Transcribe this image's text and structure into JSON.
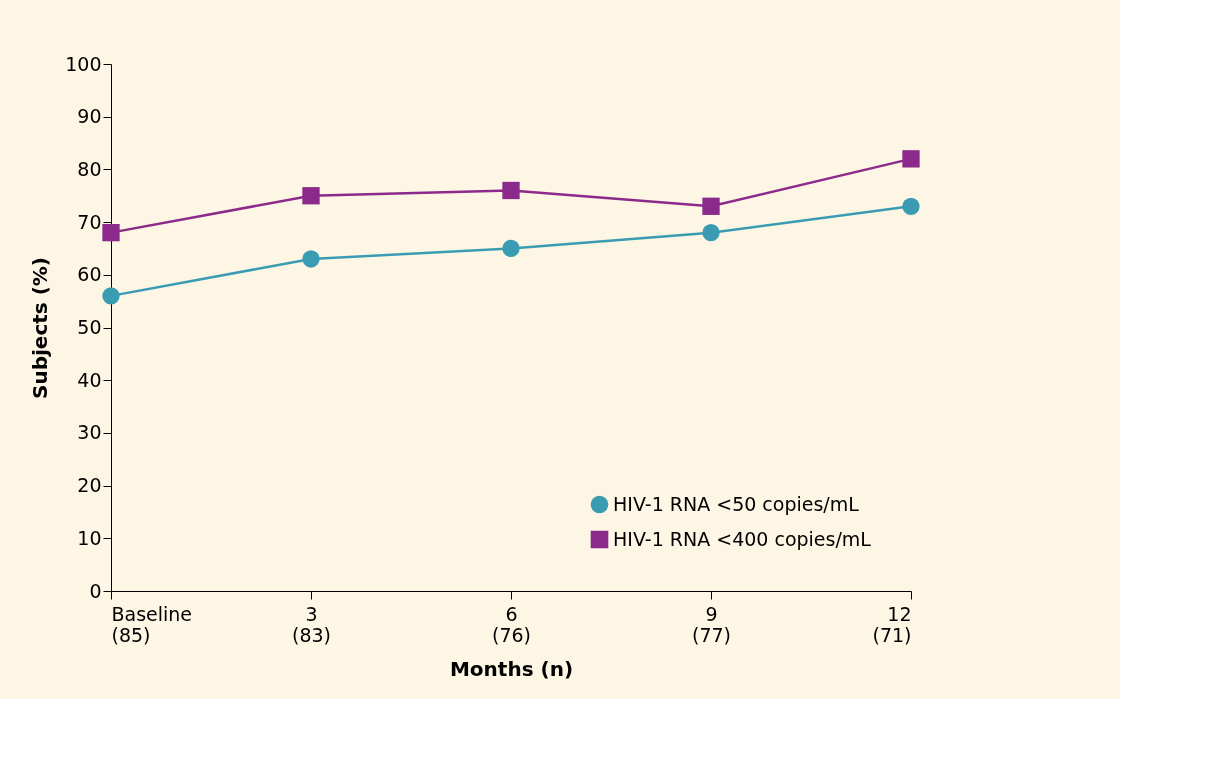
{
  "chart_data": {
    "type": "line",
    "xlabel": "Months (n)",
    "ylabel": "Subjects (%)",
    "categories": [
      "Baseline\n(85)",
      "3\n(83)",
      "6\n(76)",
      "9\n(77)",
      "12\n(71)"
    ],
    "series": [
      {
        "name": "HIV-1 RNA <50 copies/mL",
        "color": "#3a9cb2",
        "marker": "circle",
        "values": [
          56,
          63,
          65,
          68,
          73
        ]
      },
      {
        "name": "HIV-1 RNA <400 copies/mL",
        "color": "#8c2a8c",
        "marker": "square",
        "values": [
          68,
          75,
          76,
          73,
          82
        ]
      }
    ],
    "ylim": [
      0,
      100
    ],
    "yticks": [
      0,
      10,
      20,
      30,
      40,
      50,
      60,
      70,
      80,
      90,
      100
    ],
    "grid": false,
    "legend": "bottom right",
    "line_style": "solid"
  }
}
